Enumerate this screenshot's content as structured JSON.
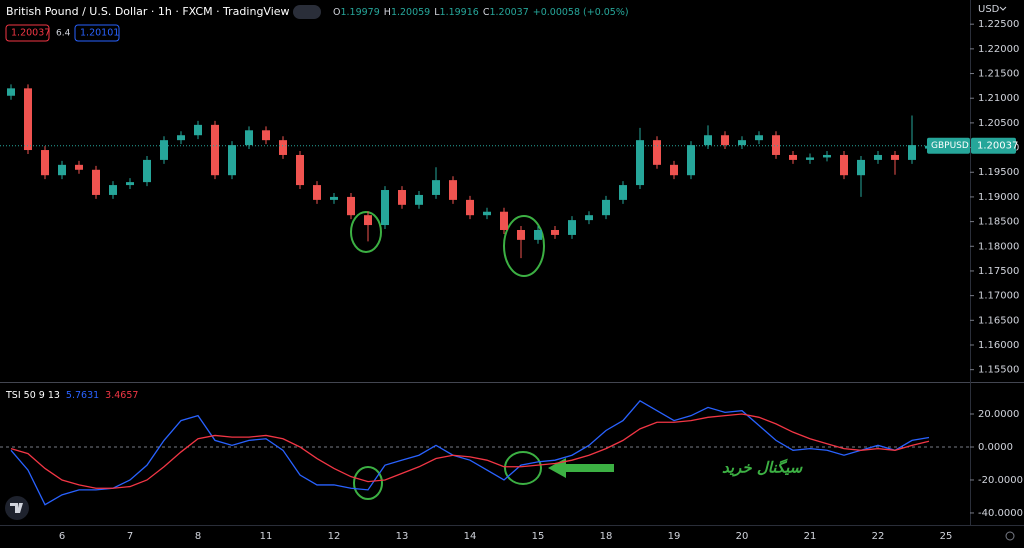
{
  "chart_data": [
    {
      "type": "candlestick",
      "title": "British Pound / U.S. Dollar · 1h · FXCM · TradingView",
      "ohlc_labels": [
        "O",
        "H",
        "L",
        "C"
      ],
      "change_label": "+0.00058 (+0.05%)",
      "spread": 6.4,
      "ask": 1.20101,
      "currency": "USD",
      "symbol": "GBPUSD",
      "up_color": "#26a69a",
      "down_color": "#ef5350",
      "open": [
        1.2105,
        1.212,
        1.1995,
        1.1944,
        1.1965,
        1.1955,
        1.1904,
        1.1924,
        1.193,
        1.1975,
        1.2015,
        1.2025,
        1.2046,
        1.1944,
        1.2005,
        1.2035,
        1.2015,
        1.1985,
        1.1924,
        1.1894,
        1.19,
        1.1863,
        1.1843,
        1.1914,
        1.1884,
        1.1904,
        1.1934,
        1.1894,
        1.1863,
        1.187,
        1.1833,
        1.1813,
        1.1833,
        1.1823,
        1.1853,
        1.1863,
        1.1894,
        1.1924,
        1.2015,
        1.1965,
        1.1944,
        1.2005,
        1.2025,
        1.2005,
        1.2015,
        1.2025,
        1.1985,
        1.1975,
        1.198,
        1.1985,
        1.1944,
        1.1975,
        1.1985,
        1.1975,
        1.19979
      ],
      "high": [
        1.2128,
        1.2128,
        1.2003,
        1.1973,
        1.1973,
        1.1963,
        1.1932,
        1.1938,
        1.1983,
        1.2023,
        1.2033,
        1.2054,
        1.2054,
        1.2013,
        1.2043,
        1.2043,
        1.2023,
        1.1993,
        1.1932,
        1.1908,
        1.1908,
        1.1871,
        1.1922,
        1.1922,
        1.1912,
        1.196,
        1.1942,
        1.1902,
        1.1878,
        1.1878,
        1.1841,
        1.1841,
        1.1841,
        1.1861,
        1.1871,
        1.1902,
        1.1932,
        1.204,
        1.2023,
        1.1973,
        1.2013,
        1.2045,
        1.2033,
        1.2023,
        1.2033,
        1.2033,
        1.1993,
        1.1988,
        1.1993,
        1.1993,
        1.1983,
        1.1993,
        1.1993,
        1.2065,
        1.20059
      ],
      "low": [
        1.2097,
        1.1987,
        1.1936,
        1.1936,
        1.1947,
        1.1896,
        1.1896,
        1.1916,
        1.1922,
        1.1967,
        1.2007,
        1.2017,
        1.1936,
        1.1936,
        1.1997,
        1.2007,
        1.1977,
        1.1916,
        1.1886,
        1.1886,
        1.1855,
        1.181,
        1.1835,
        1.1876,
        1.1876,
        1.1896,
        1.1886,
        1.1855,
        1.1855,
        1.1825,
        1.1776,
        1.1805,
        1.1815,
        1.1815,
        1.1845,
        1.1855,
        1.1886,
        1.1916,
        1.1957,
        1.1936,
        1.1936,
        1.1997,
        1.1997,
        1.1997,
        1.2007,
        1.1977,
        1.1967,
        1.1967,
        1.1972,
        1.1936,
        1.19,
        1.1967,
        1.1945,
        1.1967,
        1.19916
      ],
      "close": [
        1.212,
        1.1995,
        1.1944,
        1.1965,
        1.1955,
        1.1904,
        1.1924,
        1.193,
        1.1975,
        1.2015,
        1.2025,
        1.2046,
        1.1944,
        1.2005,
        1.2035,
        1.2015,
        1.1985,
        1.1924,
        1.1894,
        1.19,
        1.1863,
        1.1843,
        1.1914,
        1.1884,
        1.1904,
        1.1934,
        1.1894,
        1.1863,
        1.187,
        1.1833,
        1.1813,
        1.1833,
        1.1823,
        1.1853,
        1.1863,
        1.1894,
        1.1924,
        1.2015,
        1.1965,
        1.1944,
        1.2005,
        1.2025,
        1.2005,
        1.2015,
        1.2025,
        1.1985,
        1.1975,
        1.198,
        1.1985,
        1.1944,
        1.1975,
        1.1985,
        1.1975,
        1.2005,
        1.20037
      ],
      "ylim": [
        1.1525,
        1.2299
      ],
      "yticks": [
        {
          "value": 1.155,
          "label": "1.15500"
        },
        {
          "value": 1.16,
          "label": "1.16000"
        },
        {
          "value": 1.165,
          "label": "1.16500"
        },
        {
          "value": 1.17,
          "label": "1.17000"
        },
        {
          "value": 1.175,
          "label": "1.17500"
        },
        {
          "value": 1.18,
          "label": "1.18000"
        },
        {
          "value": 1.185,
          "label": "1.18500"
        },
        {
          "value": 1.19,
          "label": "1.19000"
        },
        {
          "value": 1.195,
          "label": "1.19500"
        },
        {
          "value": 1.2,
          "label": "1.20000"
        },
        {
          "value": 1.205,
          "label": "1.20500"
        },
        {
          "value": 1.21,
          "label": "1.21000"
        },
        {
          "value": 1.215,
          "label": "1.21500"
        },
        {
          "value": 1.22,
          "label": "1.22000"
        },
        {
          "value": 1.225,
          "label": "1.22500"
        }
      ],
      "grid": false
    },
    {
      "type": "line",
      "title": "TSI 50 9 13",
      "categories": [
        null,
        null,
        null,
        "6",
        null,
        null,
        null,
        "7",
        null,
        null,
        null,
        "8",
        null,
        null,
        null,
        "11",
        null,
        null,
        null,
        "12",
        null,
        null,
        null,
        "13",
        null,
        null,
        null,
        "14",
        null,
        null,
        null,
        "15",
        null,
        null,
        null,
        "18",
        null,
        null,
        null,
        "19",
        null,
        null,
        null,
        "20",
        null,
        null,
        null,
        "21",
        null,
        null,
        null,
        "22",
        null,
        null,
        null,
        "25"
      ],
      "series": [
        {
          "color": "#2962ff",
          "values": [
            -2,
            -14,
            -35,
            -29,
            -26,
            -26,
            -25,
            -20,
            -11,
            4,
            16,
            19,
            4,
            1,
            4,
            5,
            -2,
            -17,
            -23,
            -23,
            -25,
            -26,
            -11,
            -8,
            -5,
            1,
            -5,
            -8,
            -14,
            -20,
            -11,
            -9,
            -8,
            -5,
            1,
            10,
            16,
            28,
            22,
            16,
            19,
            24,
            21,
            22,
            13,
            4,
            -2,
            -1,
            -2,
            -5,
            -2,
            1,
            -2,
            4,
            5.7631,
            null
          ]
        },
        {
          "color": "#f23645",
          "values": [
            -1,
            -4,
            -13,
            -20,
            -23,
            -25,
            -25,
            -24,
            -20,
            -12,
            -3,
            5,
            7,
            6,
            6,
            7,
            5,
            0,
            -7,
            -13,
            -18,
            -21,
            -20,
            -16,
            -12,
            -7,
            -5,
            -6,
            -8,
            -12,
            -12,
            -11,
            -10,
            -8,
            -5,
            -1,
            4,
            11,
            15,
            15,
            16,
            18,
            19,
            20,
            18,
            14,
            9,
            5,
            2,
            -1,
            -2,
            -1,
            -2,
            1,
            3.4657,
            null
          ]
        }
      ],
      "ylim": [
        -47.3,
        38.8
      ],
      "yticks": [
        {
          "value": -40,
          "label": "-40.0000"
        },
        {
          "value": -20,
          "label": "-20.0000"
        },
        {
          "value": 0,
          "label": "0.0000"
        },
        {
          "value": 20,
          "label": "20.0000"
        }
      ],
      "zero_line": true,
      "annotation": "سیگنال خرید"
    }
  ]
}
